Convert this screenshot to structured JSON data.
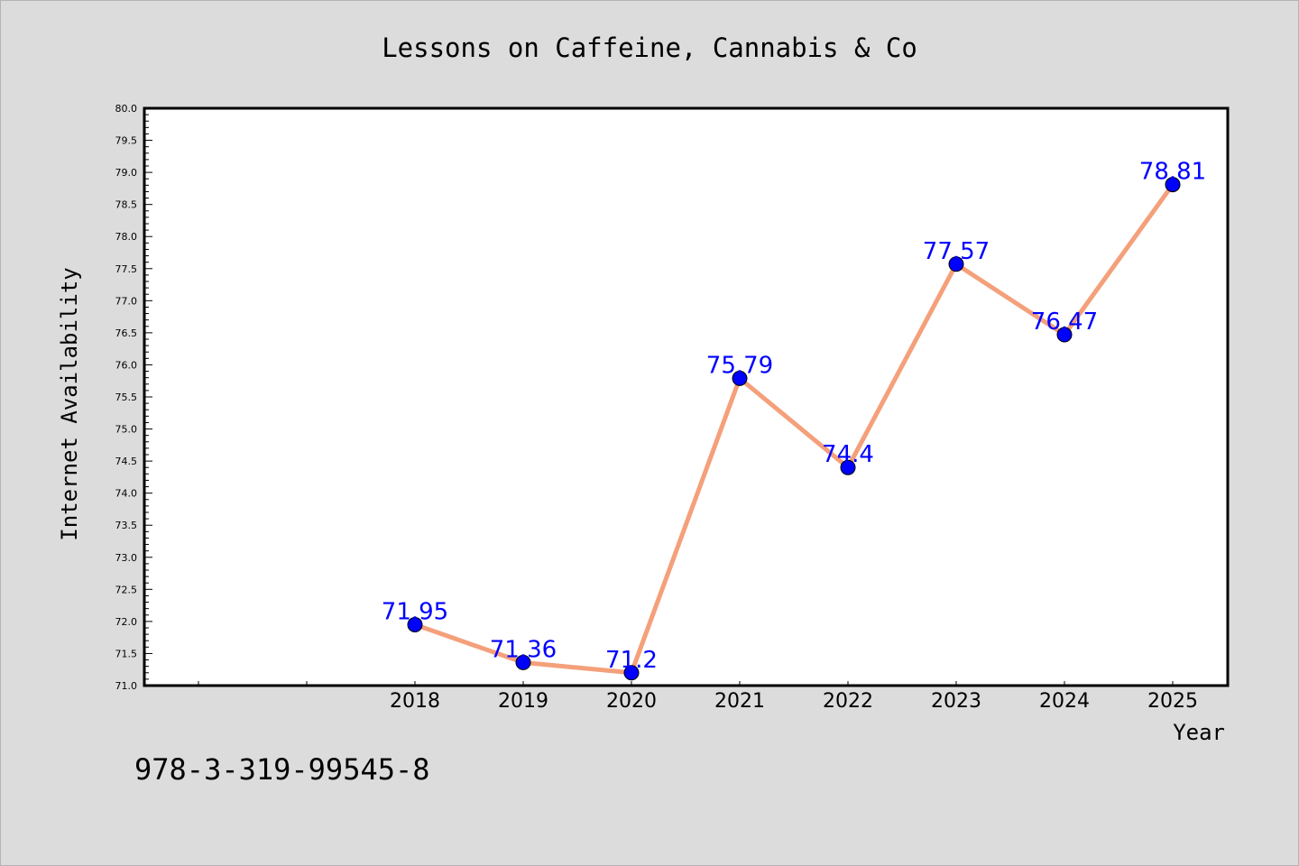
{
  "chart_data": {
    "type": "line",
    "title": "Lessons on Caffeine, Cannabis & Co",
    "xlabel": "Year",
    "ylabel": "Internet Availability",
    "x": [
      "2018",
      "2019",
      "2020",
      "2021",
      "2022",
      "2023",
      "2024",
      "2025"
    ],
    "series": [
      {
        "values": [
          71.95,
          71.36,
          71.2,
          75.79,
          74.4,
          77.57,
          76.47,
          78.81
        ],
        "data_labels": [
          "71.95",
          "71.36",
          "71.2",
          "75.79",
          "74.4",
          "77.57",
          "76.47",
          "78.81"
        ],
        "line_color": "#f4a07a",
        "marker_color": "#0000ff"
      }
    ],
    "ylim": [
      71.0,
      80.0
    ],
    "yticks": [
      "71.0",
      "71.5",
      "72.0",
      "72.5",
      "73.0",
      "73.5",
      "74.0",
      "74.5",
      "75.0",
      "75.5",
      "76.0",
      "76.5",
      "77.0",
      "77.5",
      "78.0",
      "78.5",
      "79.0",
      "79.5",
      "80.0"
    ],
    "grid": false,
    "legend": "none"
  },
  "footer": {
    "isbn": "978-3-319-99545-8"
  }
}
